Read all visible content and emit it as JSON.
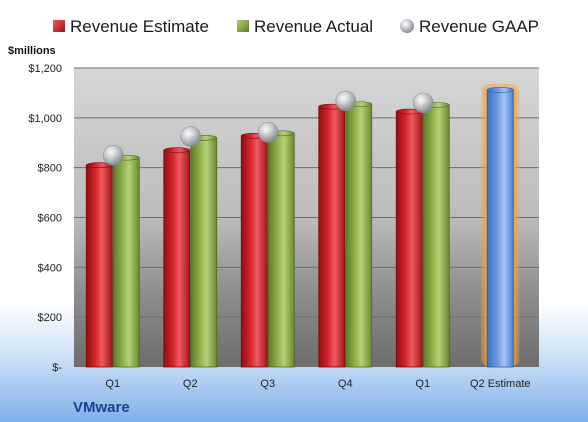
{
  "chart_data": {
    "type": "bar",
    "company": "VMware",
    "unit_label": "$millions",
    "categories": [
      "Q1",
      "Q2",
      "Q3",
      "Q4",
      "Q1",
      "Q2 Estimate"
    ],
    "series": [
      {
        "name": "Revenue Estimate",
        "values": [
          810,
          870,
          928,
          1045,
          1025,
          null
        ],
        "color": "#d4242a"
      },
      {
        "name": "Revenue Actual",
        "values": [
          840,
          920,
          938,
          1055,
          1052,
          null
        ],
        "color": "#8fb04a"
      },
      {
        "name": "Revenue GAAP",
        "values": [
          850,
          925,
          942,
          1068,
          1060,
          null
        ],
        "color": "#b9bcc1"
      }
    ],
    "projection": {
      "category": "Q2 Estimate",
      "value": 1112,
      "color": "#6a9be0",
      "glow_color": "#f3a13a"
    },
    "ylim": [
      0,
      1200
    ],
    "yticks": [
      0,
      200,
      400,
      600,
      800,
      1000,
      1200
    ],
    "ytick_labels": [
      "$-",
      "$200",
      "$400",
      "$600",
      "$800",
      "$1,000",
      "$1,200"
    ],
    "grid": true,
    "legend_position": "top"
  }
}
